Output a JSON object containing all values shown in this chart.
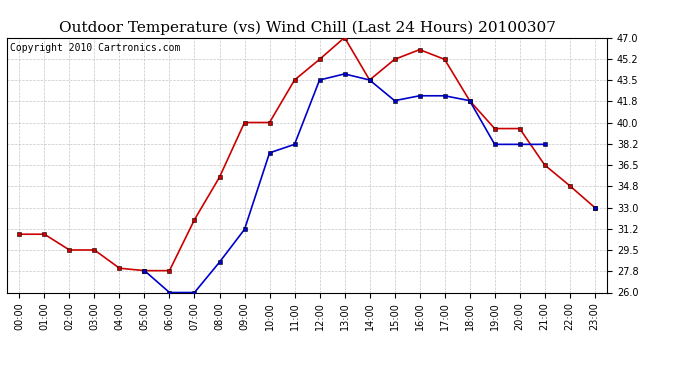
{
  "title": "Outdoor Temperature (vs) Wind Chill (Last 24 Hours) 20100307",
  "copyright": "Copyright 2010 Cartronics.com",
  "hours": [
    "00:00",
    "01:00",
    "02:00",
    "03:00",
    "04:00",
    "05:00",
    "06:00",
    "07:00",
    "08:00",
    "09:00",
    "10:00",
    "11:00",
    "12:00",
    "13:00",
    "14:00",
    "15:00",
    "16:00",
    "17:00",
    "18:00",
    "19:00",
    "20:00",
    "21:00",
    "22:00",
    "23:00"
  ],
  "temp": [
    30.8,
    30.8,
    29.5,
    29.5,
    28.0,
    27.8,
    27.8,
    32.0,
    35.5,
    40.0,
    40.0,
    43.5,
    45.2,
    47.0,
    43.5,
    45.2,
    46.0,
    45.2,
    41.8,
    39.5,
    39.5,
    36.5,
    34.8,
    33.0
  ],
  "wind_chill": [
    null,
    null,
    null,
    null,
    null,
    27.8,
    26.0,
    26.0,
    28.5,
    31.2,
    37.5,
    38.2,
    43.5,
    44.0,
    43.5,
    41.8,
    42.2,
    42.2,
    41.8,
    38.2,
    38.2,
    38.2,
    null,
    33.0
  ],
  "ylim": [
    26.0,
    47.0
  ],
  "yticks": [
    26.0,
    27.8,
    29.5,
    31.2,
    33.0,
    34.8,
    36.5,
    38.2,
    40.0,
    41.8,
    43.5,
    45.2,
    47.0
  ],
  "temp_color": "#cc0000",
  "wind_chill_color": "#0000cc",
  "bg_color": "#ffffff",
  "plot_bg_color": "#ffffff",
  "grid_color": "#b0b0b0",
  "title_fontsize": 11,
  "copyright_fontsize": 7,
  "tick_fontsize": 7
}
